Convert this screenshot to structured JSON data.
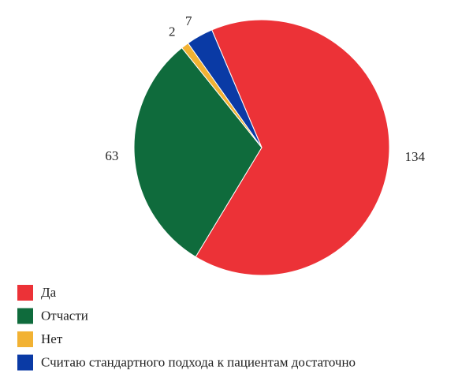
{
  "chart_data": {
    "type": "pie",
    "categories": [
      "Да",
      "Отчасти",
      "Нет",
      "Считаю стандартного подхода к пациентам достаточно"
    ],
    "values": [
      134,
      63,
      2,
      7
    ],
    "colors": [
      "#ec3237",
      "#0f6b3c",
      "#f2b233",
      "#0a3aa5"
    ],
    "legend": "bottom-left"
  }
}
